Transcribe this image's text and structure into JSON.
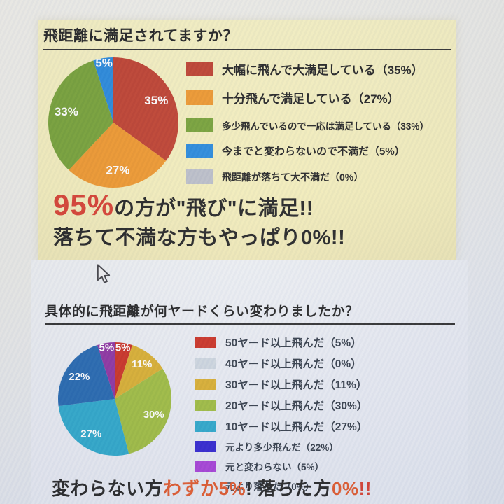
{
  "accent_colors": {
    "headline_red": "#d6392a",
    "headline_orange": "#e05426",
    "text_black": "#1c1c1c"
  },
  "sections": {
    "top": {
      "title": "飛距離に満足されてますか？",
      "message_line1_parts": [
        {
          "text": "95%",
          "color": "#d6392a",
          "emphasis": true
        },
        {
          "text": "の方が\"飛び\"に満足!!",
          "color": "#1c1c1c"
        }
      ],
      "message_line2_parts": [
        {
          "text": "落ちて不満な方もやっぱり0%!!",
          "color": "#1c1c1c"
        }
      ]
    },
    "bottom": {
      "title": "具体的に飛距離が何ヤードくらい変わりましたか？",
      "message_parts": [
        {
          "text": "変わらない方",
          "color": "#1f1f1f"
        },
        {
          "text": "わずか5%",
          "color": "#e05426"
        },
        {
          "text": "! ",
          "color": "#1f1f1f"
        },
        {
          "text": "落ちた方",
          "color": "#1f1f1f"
        },
        {
          "text": "0%",
          "color": "#e05426"
        },
        {
          "text": "!!",
          "color": "#d6392a"
        }
      ]
    }
  },
  "chart_data": [
    {
      "type": "pie",
      "title": "飛距離に満足されてますか？",
      "legend_position": "right",
      "start_angle_deg": 0,
      "direction": "clockwise",
      "slices": [
        {
          "label": "大幅に飛んで大満足している",
          "legend": "大幅に飛んで大満足している（35%）",
          "value": 35,
          "pct_label": "35%",
          "color": "#bd3a28"
        },
        {
          "label": "十分飛んで満足している",
          "legend": "十分飛んで満足している（27%）",
          "value": 27,
          "pct_label": "27%",
          "color": "#ee9426"
        },
        {
          "label": "多少飛んでいるので一応は満足している",
          "legend": "多少飛んでいるので一応は満足している（33%）",
          "value": 33,
          "pct_label": "33%",
          "color": "#729e30"
        },
        {
          "label": "今までと変わらないので不満だ",
          "legend": "今までと変わらないので不満だ（5%）",
          "value": 5,
          "pct_label": "5%",
          "color": "#2185da"
        },
        {
          "label": "飛距離が落ちて大不満だ",
          "legend": "飛距離が落ちて大不満だ（0%）",
          "value": 0,
          "pct_label": "",
          "color": "#b9bcc6"
        }
      ]
    },
    {
      "type": "pie",
      "title": "具体的に飛距離が何ヤードくらい変わりましたか？",
      "legend_position": "right",
      "start_angle_deg": 0,
      "direction": "clockwise",
      "slices": [
        {
          "label": "50ヤード以上飛んだ",
          "legend": "50ヤード以上飛んだ（5%）",
          "value": 5,
          "pct_label": "5%",
          "color": "#c92a1c"
        },
        {
          "label": "40ヤード以上飛んだ",
          "legend": "40ヤード以上飛んだ（0%）",
          "value": 0,
          "pct_label": "",
          "color": "#ccd5de"
        },
        {
          "label": "30ヤード以上飛んだ",
          "legend": "30ヤード以上飛んだ（11%）",
          "value": 11,
          "pct_label": "11%",
          "color": "#d8ac2a"
        },
        {
          "label": "20ヤード以上飛んだ",
          "legend": "20ヤード以上飛んだ（30%）",
          "value": 30,
          "pct_label": "30%",
          "color": "#9cba3b"
        },
        {
          "label": "10ヤード以上飛んだ",
          "legend": "10ヤード以上飛んだ（27%）",
          "value": 27,
          "pct_label": "27%",
          "color": "#27a5c9"
        },
        {
          "label": "元より多少飛んだ",
          "legend": "元より多少飛んだ（22%）",
          "value": 22,
          "pct_label": "22%",
          "color": "#1e63ad",
          "legend_color": "#2c1fce"
        },
        {
          "label": "元と変わらない",
          "legend": "元と変わらない（5%）",
          "value": 5,
          "pct_label": "5%",
          "color": "#8a2d9e",
          "legend_color": "#a43bd6",
          "label_color": "#8a2d9e"
        },
        {
          "label": "元より落ちた",
          "legend": "元より落ちた（0%）",
          "value": 0,
          "pct_label": "",
          "color": "",
          "no_swatch": true
        }
      ]
    }
  ]
}
